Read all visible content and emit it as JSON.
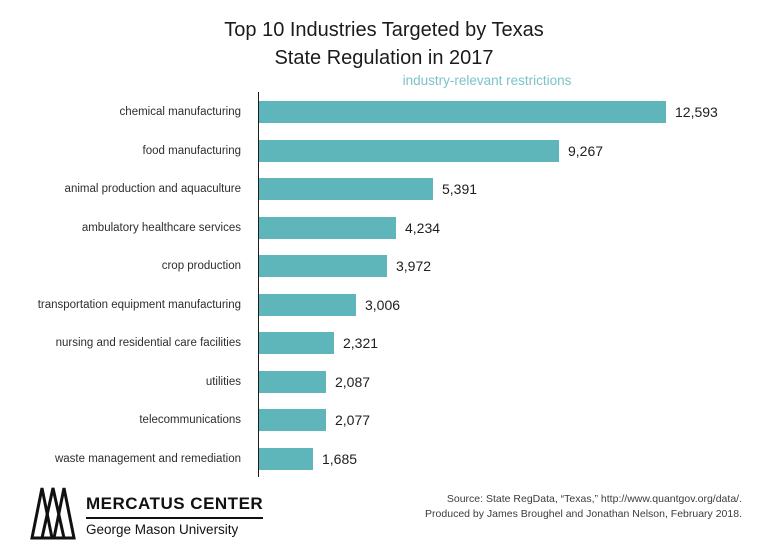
{
  "title": {
    "line1": "Top 10 Industries Targeted by Texas",
    "line2": "State Regulation in 2017"
  },
  "subtitle": "industry-relevant restrictions",
  "chart_data": {
    "type": "bar",
    "orientation": "horizontal",
    "title": "Top 10 Industries Targeted by Texas State Regulation in 2017",
    "subtitle": "industry-relevant restrictions",
    "categories": [
      "chemical manufacturing",
      "food manufacturing",
      "animal production and aquaculture",
      "ambulatory healthcare services",
      "crop production",
      "transportation equipment manufacturing",
      "nursing and residential care facilities",
      "utilities",
      "telecommunications",
      "waste management and remediation"
    ],
    "values": [
      12593,
      9267,
      5391,
      4234,
      3972,
      3006,
      2321,
      2087,
      2077,
      1685
    ],
    "value_labels": [
      "12,593",
      "9,267",
      "5,391",
      "4,234",
      "3,972",
      "3,006",
      "2,321",
      "2,087",
      "2,077",
      "1,685"
    ],
    "xlim": [
      0,
      12593
    ],
    "grid": false,
    "legend": "none",
    "data_labels": true
  },
  "colors": {
    "bar": "#5eb6bb",
    "subtitle": "#7cc3c8",
    "axis": "#1b1b1b",
    "text": "#1e1e1e"
  },
  "footer": {
    "logo_title": "MERCATUS CENTER",
    "logo_subtitle": "George Mason University",
    "source_line1": "Source: State RegData, “Texas,” http://www.quantgov.org/data/.",
    "source_line2": "Produced by James Broughel and Jonathan Nelson, February 2018."
  }
}
